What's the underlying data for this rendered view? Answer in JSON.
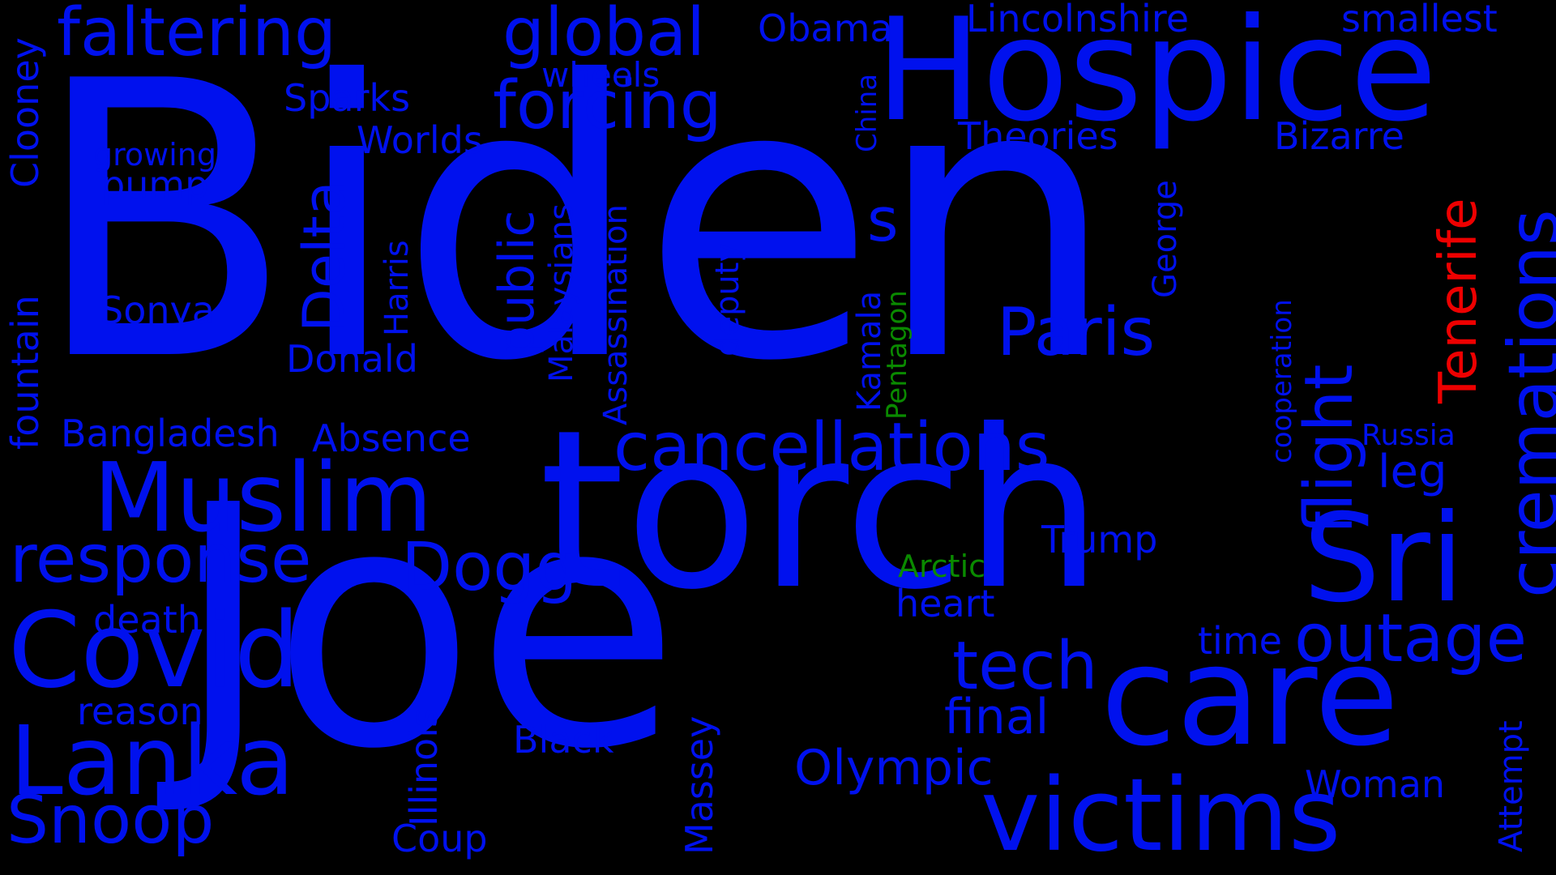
{
  "colors": {
    "blue": "#0011ee",
    "green": "#0a8a00",
    "red": "#ee0000",
    "background": "#000000"
  },
  "words": [
    {
      "text": "Biden",
      "color": "blue"
    },
    {
      "text": "Joe",
      "color": "blue"
    },
    {
      "text": "torch",
      "color": "blue"
    },
    {
      "text": "Hospice",
      "color": "blue"
    },
    {
      "text": "care",
      "color": "blue"
    },
    {
      "text": "Muslim",
      "color": "blue"
    },
    {
      "text": "Sri",
      "color": "blue"
    },
    {
      "text": "victims",
      "color": "blue"
    },
    {
      "text": "Covid",
      "color": "blue"
    },
    {
      "text": "Lanka",
      "color": "blue"
    },
    {
      "text": "cremations",
      "color": "blue"
    },
    {
      "text": "cancellations",
      "color": "blue"
    },
    {
      "text": "faltering",
      "color": "blue"
    },
    {
      "text": "global",
      "color": "blue"
    },
    {
      "text": "forcing",
      "color": "blue"
    },
    {
      "text": "response",
      "color": "blue"
    },
    {
      "text": "Snoop",
      "color": "blue"
    },
    {
      "text": "Dogg",
      "color": "blue"
    },
    {
      "text": "flight",
      "color": "blue"
    },
    {
      "text": "outage",
      "color": "blue"
    },
    {
      "text": "Paris",
      "color": "blue"
    },
    {
      "text": "tech",
      "color": "blue"
    },
    {
      "text": "Olympic",
      "color": "blue"
    },
    {
      "text": "Delta",
      "color": "blue"
    },
    {
      "text": "Tenerife",
      "color": "red"
    },
    {
      "text": "public",
      "color": "blue"
    },
    {
      "text": "final",
      "color": "blue"
    },
    {
      "text": "Bangladesh",
      "color": "blue"
    },
    {
      "text": "fountain",
      "color": "blue"
    },
    {
      "text": "Clooney",
      "color": "blue"
    },
    {
      "text": "Donald",
      "color": "blue"
    },
    {
      "text": "Absence",
      "color": "blue"
    },
    {
      "text": "Sonya",
      "color": "blue"
    },
    {
      "text": "Theories",
      "color": "blue"
    },
    {
      "text": "Bizarre",
      "color": "blue"
    },
    {
      "text": "Worlds",
      "color": "blue"
    },
    {
      "text": "Sparks",
      "color": "blue"
    },
    {
      "text": "Obama",
      "color": "blue"
    },
    {
      "text": "Lincolnshire",
      "color": "blue"
    },
    {
      "text": "smallest",
      "color": "blue"
    },
    {
      "text": "wheels",
      "color": "blue"
    },
    {
      "text": "growing",
      "color": "blue"
    },
    {
      "text": "pump",
      "color": "blue"
    },
    {
      "text": "Harris",
      "color": "blue"
    },
    {
      "text": "Malaysians",
      "color": "blue"
    },
    {
      "text": "Assassination",
      "color": "blue"
    },
    {
      "text": "deputy",
      "color": "blue"
    },
    {
      "text": "China",
      "color": "blue"
    },
    {
      "text": "Kamala",
      "color": "blue"
    },
    {
      "text": "Pentagon",
      "color": "green"
    },
    {
      "text": "George",
      "color": "blue"
    },
    {
      "text": "cooperation",
      "color": "blue"
    },
    {
      "text": "Russia",
      "color": "blue"
    },
    {
      "text": "leg",
      "color": "blue"
    },
    {
      "text": "Trump",
      "color": "blue"
    },
    {
      "text": "Arctic",
      "color": "green"
    },
    {
      "text": "heart",
      "color": "blue"
    },
    {
      "text": "time",
      "color": "blue"
    },
    {
      "text": "death",
      "color": "blue"
    },
    {
      "text": "reason",
      "color": "blue"
    },
    {
      "text": "Illinois",
      "color": "blue"
    },
    {
      "text": "Black",
      "color": "blue"
    },
    {
      "text": "Massey",
      "color": "blue"
    },
    {
      "text": "Coup",
      "color": "blue"
    },
    {
      "text": "Woman",
      "color": "blue"
    },
    {
      "text": "Attempt",
      "color": "blue"
    },
    {
      "text": "s",
      "color": "blue"
    }
  ]
}
